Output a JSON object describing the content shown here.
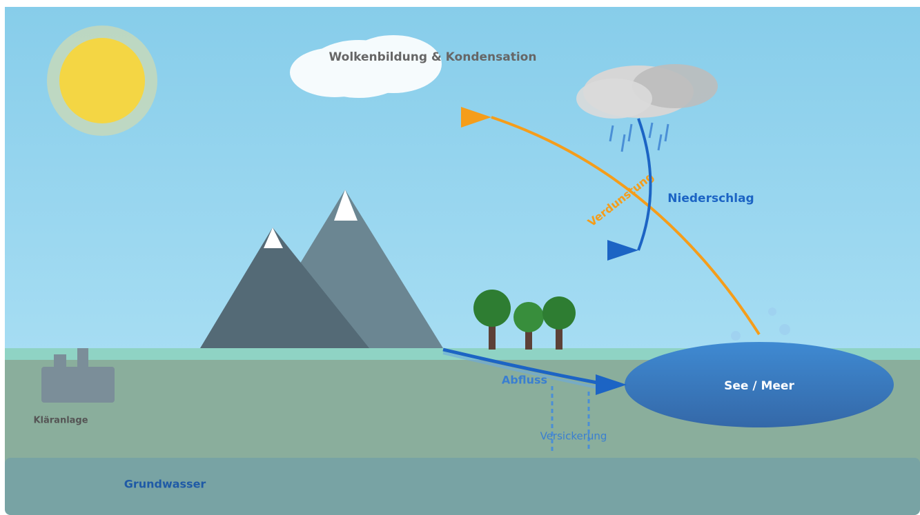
{
  "labels": {
    "condensation": "Wolkenbildung & Kondensation",
    "evaporation": "Verdunstung",
    "precipitation": "Niederschlag",
    "runoff": "Abfluss",
    "lake": "See / Meer",
    "infiltration": "Versickerung",
    "treatment_plant": "Kläranlage",
    "groundwater": "Grundwasser"
  }
}
